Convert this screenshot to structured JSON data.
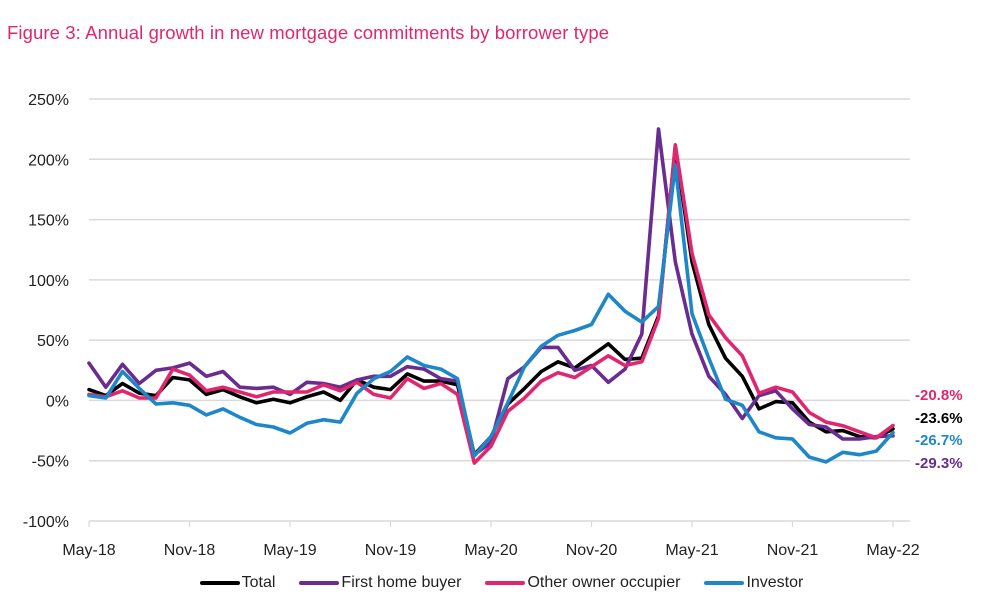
{
  "chart_data": {
    "type": "line",
    "title": "Figure 3:  Annual growth in new mortgage commitments by borrower type",
    "title_color": "#e0266f",
    "xlabel": "",
    "ylabel": "",
    "ylim": [
      -100,
      250
    ],
    "y_ticks": [
      -100,
      -50,
      0,
      50,
      100,
      150,
      200,
      250
    ],
    "y_tick_labels": [
      "-100%",
      "-50%",
      "0%",
      "50%",
      "100%",
      "150%",
      "200%",
      "250%"
    ],
    "x_tick_labels": [
      "May-18",
      "Nov-18",
      "May-19",
      "Nov-19",
      "May-20",
      "Nov-20",
      "May-21",
      "Nov-21",
      "May-22"
    ],
    "x_tick_step_months": 6,
    "x_start": "May-18",
    "x_end": "May-22",
    "grid": "horizontal",
    "legend_position": "bottom",
    "values_note": "Monthly values were estimated by eye from line positions against the gridlines (approx. ±3-5 percentage points; less precise near the May-20 trough and May-21 peak). Only the four end_value labels are printed on the chart.",
    "x": [
      "May-18",
      "Jun-18",
      "Jul-18",
      "Aug-18",
      "Sep-18",
      "Oct-18",
      "Nov-18",
      "Dec-18",
      "Jan-19",
      "Feb-19",
      "Mar-19",
      "Apr-19",
      "May-19",
      "Jun-19",
      "Jul-19",
      "Aug-19",
      "Sep-19",
      "Oct-19",
      "Nov-19",
      "Dec-19",
      "Jan-20",
      "Feb-20",
      "Mar-20",
      "Apr-20",
      "May-20",
      "Jun-20",
      "Jul-20",
      "Aug-20",
      "Sep-20",
      "Oct-20",
      "Nov-20",
      "Dec-20",
      "Jan-21",
      "Feb-21",
      "Mar-21",
      "Apr-21",
      "May-21",
      "Jun-21",
      "Jul-21",
      "Aug-21",
      "Sep-21",
      "Oct-21",
      "Nov-21",
      "Dec-21",
      "Jan-22",
      "Feb-22",
      "Mar-22",
      "Apr-22",
      "May-22"
    ],
    "series": [
      {
        "name": "Total",
        "color": "#000000",
        "end_label": "-23.6%",
        "end_value": -23.6,
        "values": [
          9,
          4,
          14,
          6,
          4,
          19,
          17,
          5,
          9,
          3,
          -2,
          1,
          -2,
          3,
          7,
          0,
          17,
          11,
          9,
          22,
          16,
          16,
          13,
          -45,
          -30,
          -3,
          10,
          24,
          32,
          27,
          37,
          47,
          34,
          35,
          70,
          210,
          115,
          63,
          35,
          20,
          -7,
          -1,
          -2,
          -18,
          -26,
          -25,
          -30,
          -31,
          -23.6
        ]
      },
      {
        "name": "First home buyer",
        "color": "#6a2c8e",
        "end_label": "-29.3%",
        "end_value": -29.3,
        "values": [
          31,
          11,
          30,
          14,
          25,
          27,
          31,
          20,
          24,
          11,
          10,
          11,
          5,
          15,
          14,
          11,
          17,
          20,
          20,
          28,
          26,
          18,
          16,
          -45,
          -35,
          18,
          28,
          44,
          44,
          25,
          29,
          15,
          26,
          55,
          225,
          115,
          55,
          20,
          5,
          -15,
          4,
          8,
          -7,
          -20,
          -22,
          -32,
          -32,
          -30,
          -29.3
        ]
      },
      {
        "name": "Other owner occupier",
        "color": "#e0266f",
        "end_label": "-20.8%",
        "end_value": -20.8,
        "values": [
          5,
          3,
          8,
          2,
          2,
          26,
          21,
          8,
          11,
          7,
          3,
          7,
          7,
          7,
          13,
          8,
          15,
          5,
          2,
          18,
          10,
          14,
          5,
          -52,
          -38,
          -9,
          2,
          16,
          23,
          19,
          28,
          37,
          29,
          32,
          68,
          212,
          122,
          71,
          52,
          37,
          6,
          11,
          7,
          -10,
          -18,
          -21,
          -26,
          -31,
          -20.8
        ]
      },
      {
        "name": "Investor",
        "color": "#1e87c8",
        "end_label": "-26.7%",
        "end_value": -26.7,
        "values": [
          4,
          2,
          24,
          10,
          -3,
          -2,
          -4,
          -12,
          -7,
          -14,
          -20,
          -22,
          -27,
          -19,
          -16,
          -18,
          6,
          18,
          24,
          36,
          29,
          26,
          18,
          -46,
          -30,
          -2,
          28,
          45,
          54,
          58,
          63,
          88,
          74,
          65,
          78,
          195,
          72,
          35,
          1,
          -4,
          -26,
          -31,
          -32,
          -47,
          -51,
          -43,
          -45,
          -42,
          -26.7
        ]
      }
    ]
  }
}
